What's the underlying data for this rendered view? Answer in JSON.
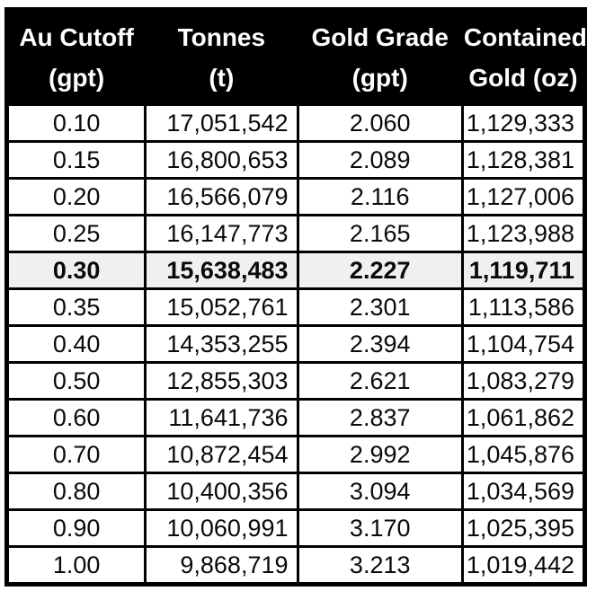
{
  "chart_data": {
    "type": "table",
    "title": "",
    "columns": [
      {
        "line1": "Au Cutoff",
        "line2": "(gpt)"
      },
      {
        "line1": "Tonnes",
        "line2": "(t)"
      },
      {
        "line1": "Gold Grade",
        "line2": "(gpt)"
      },
      {
        "line1": "Contained",
        "line2": "Gold (oz)"
      }
    ],
    "rows": [
      {
        "cutoff": "0.10",
        "tonnes": "17,051,542",
        "grade": "2.060",
        "contained_gold": "1,129,333",
        "highlight": false
      },
      {
        "cutoff": "0.15",
        "tonnes": "16,800,653",
        "grade": "2.089",
        "contained_gold": "1,128,381",
        "highlight": false
      },
      {
        "cutoff": "0.20",
        "tonnes": "16,566,079",
        "grade": "2.116",
        "contained_gold": "1,127,006",
        "highlight": false
      },
      {
        "cutoff": "0.25",
        "tonnes": "16,147,773",
        "grade": "2.165",
        "contained_gold": "1,123,988",
        "highlight": false
      },
      {
        "cutoff": "0.30",
        "tonnes": "15,638,483",
        "grade": "2.227",
        "contained_gold": "1,119,711",
        "highlight": true
      },
      {
        "cutoff": "0.35",
        "tonnes": "15,052,761",
        "grade": "2.301",
        "contained_gold": "1,113,586",
        "highlight": false
      },
      {
        "cutoff": "0.40",
        "tonnes": "14,353,255",
        "grade": "2.394",
        "contained_gold": "1,104,754",
        "highlight": false
      },
      {
        "cutoff": "0.50",
        "tonnes": "12,855,303",
        "grade": "2.621",
        "contained_gold": "1,083,279",
        "highlight": false
      },
      {
        "cutoff": "0.60",
        "tonnes": "11,641,736",
        "grade": "2.837",
        "contained_gold": "1,061,862",
        "highlight": false
      },
      {
        "cutoff": "0.70",
        "tonnes": "10,872,454",
        "grade": "2.992",
        "contained_gold": "1,045,876",
        "highlight": false
      },
      {
        "cutoff": "0.80",
        "tonnes": "10,400,356",
        "grade": "3.094",
        "contained_gold": "1,034,569",
        "highlight": false
      },
      {
        "cutoff": "0.90",
        "tonnes": "10,060,991",
        "grade": "3.170",
        "contained_gold": "1,025,395",
        "highlight": false
      },
      {
        "cutoff": "1.00",
        "tonnes": "9,868,719",
        "grade": "3.213",
        "contained_gold": "1,019,442",
        "highlight": false
      }
    ],
    "colors": {
      "header_bg": "#000000",
      "header_text": "#ffffff",
      "highlight_row_bg": "#f0f0f0",
      "body_text": "#0a0a0a",
      "border": "#000000"
    }
  }
}
